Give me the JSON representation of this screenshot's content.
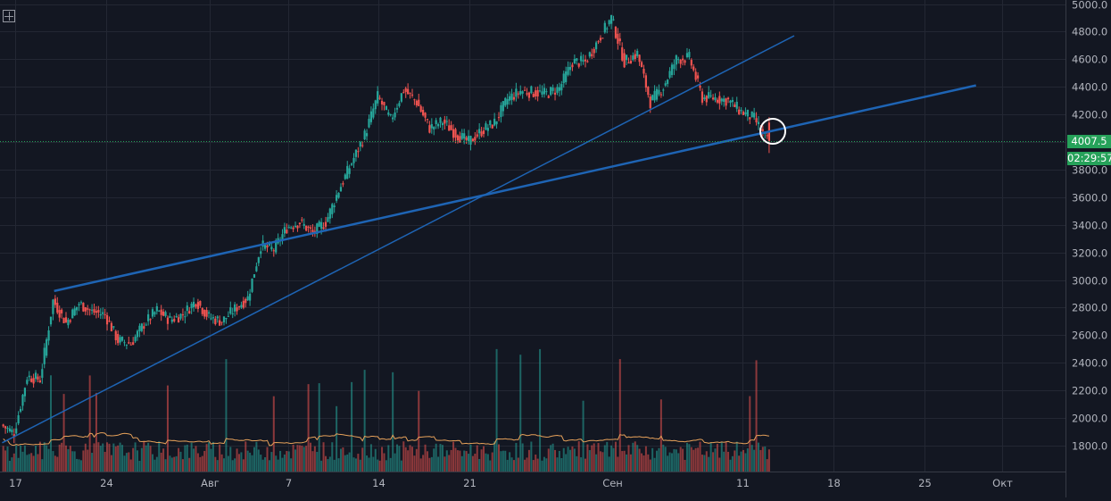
{
  "chart_data": {
    "type": "candlestick",
    "price_axis": {
      "ylim": [
        1700,
        5000
      ],
      "tick_labels": [
        "5000.0",
        "4800.0",
        "4600.0",
        "4400.0",
        "4200.0",
        "4000.0",
        "3800.0",
        "3600.0",
        "3400.0",
        "3200.0",
        "3000.0",
        "2800.0",
        "2600.0",
        "2400.0",
        "2200.0",
        "2000.0",
        "1800.0"
      ],
      "tick_values": [
        5000,
        4800,
        4600,
        4400,
        4200,
        4000,
        3800,
        3600,
        3400,
        3200,
        3000,
        2800,
        2600,
        2400,
        2200,
        2000,
        1800
      ]
    },
    "time_axis": {
      "tick_labels": [
        "17",
        "24",
        "Авг",
        "7",
        "14",
        "21",
        "Сен",
        "11",
        "18",
        "25",
        "Окт"
      ]
    },
    "ohlc_close_series": [
      [
        "2017-07-16",
        1950
      ],
      [
        "2017-07-17",
        1890
      ],
      [
        "2017-07-18",
        2300
      ],
      [
        "2017-07-19",
        2280
      ],
      [
        "2017-07-20",
        2850
      ],
      [
        "2017-07-21",
        2690
      ],
      [
        "2017-07-22",
        2830
      ],
      [
        "2017-07-23",
        2770
      ],
      [
        "2017-07-24",
        2750
      ],
      [
        "2017-07-25",
        2560
      ],
      [
        "2017-07-26",
        2540
      ],
      [
        "2017-07-27",
        2680
      ],
      [
        "2017-07-28",
        2780
      ],
      [
        "2017-07-29",
        2710
      ],
      [
        "2017-07-30",
        2750
      ],
      [
        "2017-07-31",
        2850
      ],
      [
        "2017-08-01",
        2730
      ],
      [
        "2017-08-02",
        2700
      ],
      [
        "2017-08-03",
        2790
      ],
      [
        "2017-08-04",
        2870
      ],
      [
        "2017-08-05",
        3250
      ],
      [
        "2017-08-06",
        3220
      ],
      [
        "2017-08-07",
        3380
      ],
      [
        "2017-08-08",
        3420
      ],
      [
        "2017-08-09",
        3340
      ],
      [
        "2017-08-10",
        3420
      ],
      [
        "2017-08-11",
        3650
      ],
      [
        "2017-08-12",
        3850
      ],
      [
        "2017-08-13",
        4050
      ],
      [
        "2017-08-14",
        4330
      ],
      [
        "2017-08-15",
        4160
      ],
      [
        "2017-08-16",
        4380
      ],
      [
        "2017-08-17",
        4290
      ],
      [
        "2017-08-18",
        4100
      ],
      [
        "2017-08-19",
        4150
      ],
      [
        "2017-08-20",
        4060
      ],
      [
        "2017-08-21",
        4000
      ],
      [
        "2017-08-22",
        4080
      ],
      [
        "2017-08-23",
        4140
      ],
      [
        "2017-08-24",
        4310
      ],
      [
        "2017-08-25",
        4370
      ],
      [
        "2017-08-26",
        4360
      ],
      [
        "2017-08-27",
        4350
      ],
      [
        "2017-08-28",
        4390
      ],
      [
        "2017-08-29",
        4580
      ],
      [
        "2017-08-30",
        4580
      ],
      [
        "2017-08-31",
        4740
      ],
      [
        "2017-09-01",
        4900
      ],
      [
        "2017-09-02",
        4580
      ],
      [
        "2017-09-03",
        4640
      ],
      [
        "2017-09-04",
        4290
      ],
      [
        "2017-09-05",
        4400
      ],
      [
        "2017-09-06",
        4600
      ],
      [
        "2017-09-07",
        4610
      ],
      [
        "2017-09-08",
        4320
      ],
      [
        "2017-09-09",
        4320
      ],
      [
        "2017-09-10",
        4300
      ],
      [
        "2017-09-11",
        4220
      ],
      [
        "2017-09-12",
        4170
      ],
      [
        "2017-09-13",
        4007.5
      ]
    ],
    "trendlines": [
      {
        "from": [
          "2017-07-20",
          2920
        ],
        "to": [
          "2017-09-29",
          4410
        ]
      },
      {
        "from": [
          "2017-07-16",
          1820
        ],
        "to": [
          "2017-09-15",
          4770
        ]
      }
    ],
    "current_price": "4007.5",
    "countdown": "02:29:57",
    "grid": true
  },
  "colors": {
    "background": "#131722",
    "grid": "#232733",
    "up": "#26a69a",
    "down": "#ef5350",
    "trendline": "#1e64b4",
    "volume_ma": "#e6a15a",
    "price_tag": "#26a25a",
    "axis_text": "#b2b5be"
  },
  "icons": {
    "crosshair": "crosshair-icon"
  }
}
